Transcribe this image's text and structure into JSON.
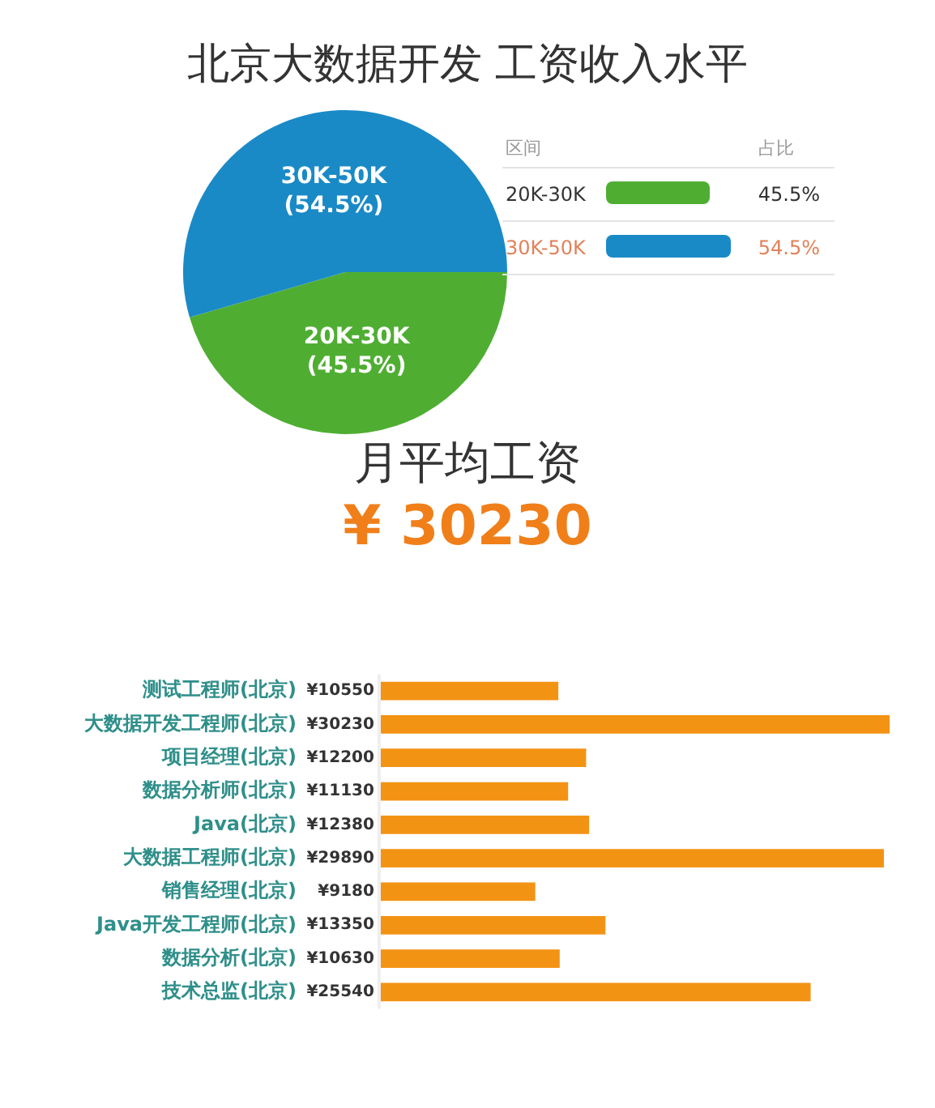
{
  "chart_data": [
    {
      "type": "pie",
      "title": "北京大数据开发 工资收入水平",
      "categories": [
        "20K-30K",
        "30K-50K"
      ],
      "values": [
        45.5,
        54.5
      ],
      "colors": [
        "#4fae32",
        "#1a8ac6"
      ],
      "value_labels": [
        "(45.5%)",
        "(54.5%)"
      ],
      "data_labels": true,
      "legend_title": "区间",
      "annotations": [
        "占比",
        "45.5%",
        "54.5%"
      ]
    },
    {
      "type": "bar",
      "orientation": "horizontal",
      "title": "月平均工资",
      "subtitle": "¥ 30230",
      "categories": [
        "测试工程师(北京)",
        "大数据开发工程师(北京)",
        "项目经理(北京)",
        "数据分析师(北京)",
        "Java(北京)",
        "大数据工程师(北京)",
        "销售经理(北京)",
        "Java开发工程师(北京)",
        "数据分析(北京)",
        "技术总监(北京)"
      ],
      "values": [
        10550,
        30230,
        12200,
        11130,
        12380,
        29890,
        9180,
        13350,
        10630,
        25540
      ],
      "value_labels": [
        "¥10550",
        "¥30230",
        "¥12200",
        "¥11130",
        "¥12380",
        "¥29890",
        "¥9180",
        "¥13350",
        "¥10630",
        "¥25540"
      ],
      "color": "#f39314",
      "grid": false,
      "legend": false
    }
  ]
}
